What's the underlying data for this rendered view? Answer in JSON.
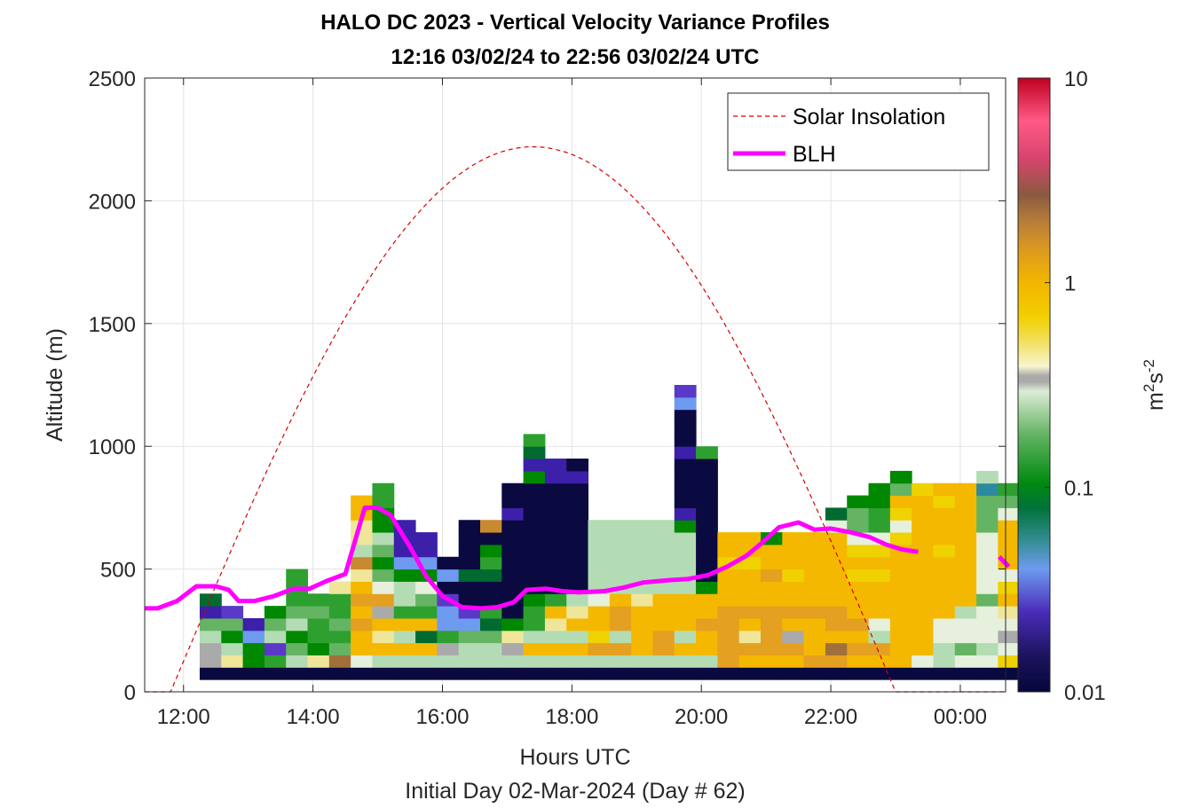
{
  "chart_data": {
    "type": "heatmap",
    "title": "HALO DC 2023 - Vertical Velocity Variance Profiles",
    "subtitle": "12:16 03/02/24 to 22:56 03/02/24  UTC",
    "xlabel": "Hours UTC",
    "xlabel2": "Initial Day 02-Mar-2024 (Day # 62)",
    "ylabel": "Altitude (m)",
    "xlim": [
      11.4,
      24.7
    ],
    "ylim": [
      0,
      2500
    ],
    "x_ticks": [
      12,
      14,
      16,
      18,
      20,
      22,
      24
    ],
    "x_tick_labels": [
      "12:00",
      "14:00",
      "16:00",
      "18:00",
      "20:00",
      "22:00",
      "00:00"
    ],
    "y_ticks": [
      0,
      500,
      1000,
      1500,
      2000,
      2500
    ],
    "y_tick_labels": [
      "0",
      "500",
      "1000",
      "1500",
      "2000",
      "2500"
    ],
    "grid": true,
    "colorbar": {
      "scale": "log",
      "min": 0.01,
      "max": 10,
      "tick_values": [
        0.01,
        0.1,
        1,
        10
      ],
      "tick_labels": [
        "0.01",
        "0.1",
        "1",
        "10"
      ],
      "label_base": "m",
      "label_sup1": "2",
      "label_mid": "s",
      "label_sup2": "-2"
    },
    "legend": {
      "position": "top-right",
      "entries": [
        {
          "label": "Solar Insolation",
          "color": "#d40000",
          "style": "dashed"
        },
        {
          "label": "BLH",
          "color": "#ff00ff",
          "style": "solid"
        }
      ]
    },
    "heatmap_cells": {
      "x_start": 12.25,
      "dx": 0.3333,
      "y_start": 50,
      "dy": 50,
      "color_by_index": [
        "#f0f0f0",
        "#0a0a40",
        "#251878",
        "#3c20aa",
        "#5a38c8",
        "#6e9af0",
        "#2b8aa0",
        "#006a30",
        "#008800",
        "#2ea030",
        "#64b464",
        "#b4dcb4",
        "#e6f0dc",
        "#aaaaaa",
        "#f0e69a",
        "#f0d200",
        "#f5b800",
        "#e4a020",
        "#c88a30",
        "#a0703a"
      ],
      "columns": [
        [
          1,
          13,
          13,
          11,
          10,
          3,
          7
        ],
        [
          1,
          14,
          11,
          8,
          10,
          4
        ],
        [
          1,
          8,
          8,
          5,
          3
        ],
        [
          1,
          9,
          4,
          11,
          10,
          8
        ],
        [
          1,
          11,
          10,
          8,
          11,
          10,
          9,
          9,
          9
        ],
        [
          1,
          14,
          8,
          9,
          9,
          10,
          9
        ],
        [
          1,
          19,
          10,
          9,
          10,
          9,
          9,
          14
        ],
        [
          1,
          12,
          16,
          16,
          17,
          16,
          17,
          16,
          14,
          18,
          11,
          14,
          14,
          16,
          16
        ],
        [
          1,
          11,
          16,
          14,
          16,
          13,
          17,
          12,
          10,
          8,
          10,
          11,
          8,
          8,
          9,
          9
        ],
        [
          1,
          11,
          16,
          11,
          16,
          9,
          11,
          11,
          8,
          5,
          3,
          3,
          3
        ],
        [
          1,
          11,
          16,
          7,
          16,
          9,
          10,
          12,
          8,
          5,
          3,
          3
        ],
        [
          1,
          11,
          13,
          9,
          5,
          5,
          4,
          1,
          5,
          1
        ],
        [
          1,
          11,
          11,
          10,
          5,
          4,
          1,
          1,
          7,
          1,
          1,
          1,
          1
        ],
        [
          1,
          11,
          11,
          10,
          7,
          9,
          1,
          1,
          7,
          9,
          8,
          1,
          18
        ],
        [
          1,
          11,
          13,
          14,
          8,
          1,
          1,
          1,
          1,
          1,
          1,
          1,
          1,
          3,
          1,
          1
        ],
        [
          1,
          11,
          16,
          11,
          9,
          9,
          8,
          1,
          1,
          1,
          1,
          1,
          1,
          1,
          1,
          1,
          8,
          3,
          7,
          9
        ],
        [
          1,
          11,
          16,
          11,
          14,
          16,
          9,
          1,
          1,
          1,
          1,
          1,
          1,
          1,
          1,
          1,
          3,
          3
        ],
        [
          1,
          11,
          16,
          11,
          16,
          14,
          11,
          1,
          1,
          1,
          1,
          1,
          1,
          1,
          1,
          1,
          3,
          1
        ],
        [
          1,
          11,
          17,
          15,
          16,
          16,
          12,
          11,
          11,
          11,
          11,
          11,
          11
        ],
        [
          1,
          11,
          17,
          11,
          17,
          17,
          16,
          11,
          11,
          11,
          11,
          11,
          11
        ],
        [
          1,
          11,
          16,
          16,
          16,
          16,
          14,
          11,
          11,
          11,
          11,
          11,
          11
        ],
        [
          1,
          11,
          17,
          17,
          16,
          16,
          16,
          11,
          11,
          11,
          11,
          11,
          11
        ],
        [
          1,
          11,
          16,
          11,
          16,
          16,
          16,
          11,
          11,
          11,
          11,
          11,
          8,
          3,
          1,
          1,
          1,
          1,
          3,
          1,
          1,
          1,
          5,
          4
        ],
        [
          1,
          11,
          16,
          16,
          17,
          16,
          16,
          8,
          1,
          1,
          1,
          1,
          1,
          1,
          1,
          1,
          1,
          1,
          9
        ],
        [
          1,
          17,
          17,
          17,
          17,
          17,
          16,
          16,
          16,
          15,
          16,
          16
        ],
        [
          1,
          16,
          17,
          14,
          16,
          17,
          16,
          16,
          16,
          15,
          16,
          16
        ],
        [
          1,
          16,
          17,
          17,
          17,
          17,
          16,
          16,
          17,
          16,
          16,
          8
        ],
        [
          1,
          16,
          17,
          13,
          16,
          17,
          16,
          16,
          15,
          16,
          16,
          16
        ],
        [
          1,
          17,
          16,
          16,
          16,
          17,
          16,
          16,
          16,
          16,
          16,
          16
        ],
        [
          1,
          17,
          19,
          16,
          17,
          17,
          16,
          16,
          16,
          16,
          16,
          16,
          12,
          7
        ],
        [
          1,
          16,
          17,
          16,
          17,
          16,
          16,
          16,
          15,
          16,
          15,
          12,
          10,
          10,
          8
        ],
        [
          1,
          16,
          17,
          11,
          12,
          16,
          16,
          16,
          15,
          16,
          15,
          12,
          9,
          9,
          8,
          8
        ],
        [
          1,
          16,
          16,
          16,
          16,
          16,
          16,
          16,
          16,
          16,
          16,
          15,
          12,
          15,
          16,
          10,
          8
        ],
        [
          1,
          12,
          16,
          16,
          16,
          16,
          16,
          16,
          16,
          16,
          16,
          16,
          16,
          16,
          16,
          15
        ],
        [
          1,
          11,
          11,
          12,
          12,
          16,
          16,
          16,
          16,
          16,
          15,
          16,
          16,
          16,
          15,
          16
        ],
        [
          1,
          12,
          10,
          12,
          12,
          11,
          16,
          16,
          16,
          16,
          16,
          16,
          16,
          16,
          16,
          16
        ],
        [
          1,
          12,
          11,
          12,
          12,
          12,
          10,
          12,
          12,
          12,
          12,
          12,
          10,
          10,
          10,
          6,
          11
        ],
        [
          1,
          15,
          12,
          13,
          12,
          14,
          16,
          15,
          12,
          16,
          16,
          16,
          16,
          12,
          10,
          9
        ]
      ]
    },
    "series": [
      {
        "name": "BLH",
        "x": [
          11.4,
          11.6,
          11.9,
          12.2,
          12.5,
          12.7,
          12.85,
          13.1,
          13.4,
          13.7,
          13.95,
          14.2,
          14.5,
          14.8,
          15.0,
          15.2,
          15.5,
          15.75,
          16.0,
          16.3,
          16.6,
          16.85,
          17.1,
          17.3,
          17.6,
          17.85,
          18.1,
          18.5,
          18.8,
          19.1,
          19.5,
          19.8,
          20.1,
          20.4,
          20.7,
          20.95,
          21.2,
          21.5,
          21.75,
          22.0,
          22.3,
          22.6,
          22.85,
          23.1,
          23.35,
          24.6,
          24.75
        ],
        "y": [
          340,
          340,
          370,
          430,
          430,
          415,
          370,
          370,
          390,
          420,
          420,
          450,
          480,
          750,
          750,
          720,
          590,
          470,
          390,
          345,
          340,
          345,
          365,
          415,
          420,
          410,
          405,
          410,
          425,
          445,
          455,
          460,
          475,
          510,
          555,
          610,
          670,
          690,
          660,
          665,
          650,
          630,
          600,
          580,
          570,
          550,
          510
        ]
      },
      {
        "name": "Solar Insolation",
        "sunrise": 11.8,
        "sunset": 23.0,
        "peak_time": 17.3,
        "peak_altitude_equiv": 2220
      }
    ]
  }
}
